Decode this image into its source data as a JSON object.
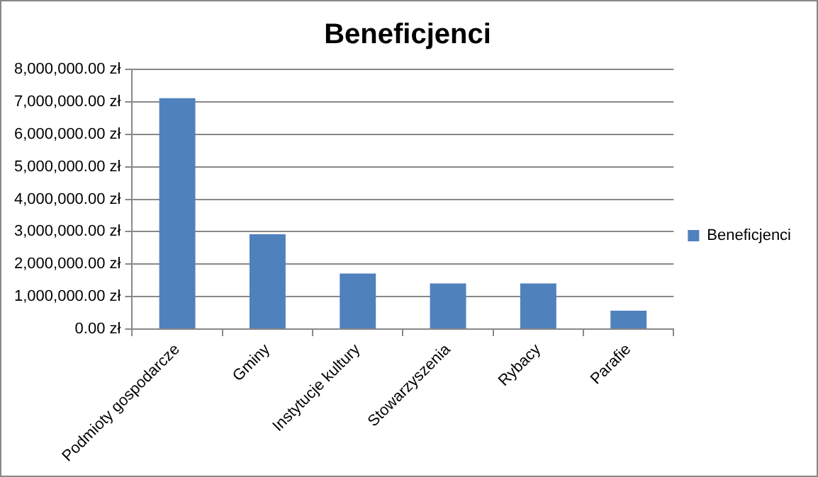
{
  "chart_data": {
    "type": "bar",
    "title": "Beneficjenci",
    "categories": [
      "Podmioty gospodarcze",
      "Gminy",
      "Instytucje kultury",
      "Stowarzyszenia",
      "Rybacy",
      "Parafie"
    ],
    "series": [
      {
        "name": "Beneficjenci",
        "color": "#4f81bd",
        "values": [
          7110000,
          2920000,
          1710000,
          1410000,
          1410000,
          570000
        ]
      }
    ],
    "ylim": [
      0,
      8000000
    ],
    "yticks": [
      {
        "value": 0,
        "label": "0.00 zł"
      },
      {
        "value": 1000000,
        "label": "1,000,000.00 zł"
      },
      {
        "value": 2000000,
        "label": "2,000,000.00 zł"
      },
      {
        "value": 3000000,
        "label": "3,000,000.00 zł"
      },
      {
        "value": 4000000,
        "label": "4,000,000.00 zł"
      },
      {
        "value": 5000000,
        "label": "5,000,000.00 zł"
      },
      {
        "value": 6000000,
        "label": "6,000,000.00 zł"
      },
      {
        "value": 7000000,
        "label": "7,000,000.00 zł"
      },
      {
        "value": 8000000,
        "label": "8,000,000.00 zł"
      }
    ],
    "grid": "y",
    "legend": "right"
  }
}
